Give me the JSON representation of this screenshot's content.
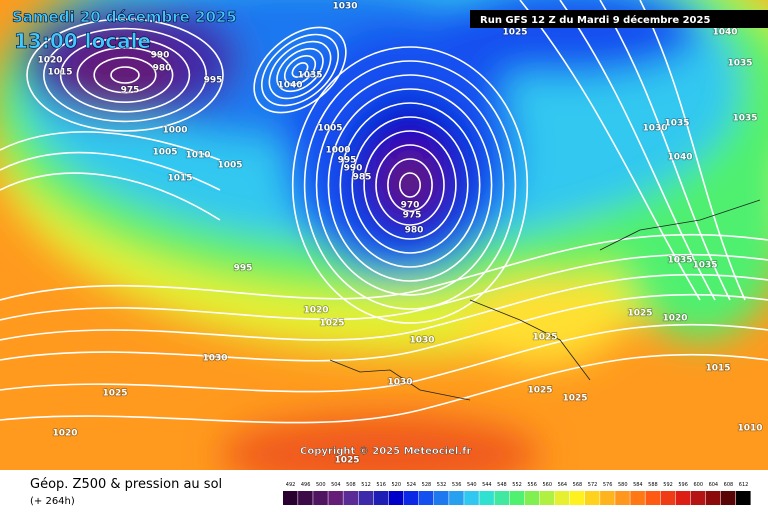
{
  "header": {
    "date": "Samedi 20 décembre 2025",
    "time": "13:00 locale",
    "run": "Run GFS 12 Z du Mardi 9 décembre 2025"
  },
  "copyright": "Copyright © 2025 Meteociel.fr",
  "footer": {
    "title": "Géop. Z500 & pression au sol",
    "lead": "(+ 264h)"
  },
  "isobar_labels": [
    "1020",
    "1015",
    "990",
    "980",
    "975",
    "995",
    "1035",
    "1040",
    "1000",
    "1005",
    "1010",
    "1015",
    "1005",
    "1005",
    "1000",
    "995",
    "990",
    "985",
    "970",
    "975",
    "980",
    "995",
    "1020",
    "1025",
    "1030",
    "1030",
    "1025",
    "1030",
    "1025",
    "1020",
    "1025",
    "1025",
    "1020",
    "1035",
    "1035",
    "1015",
    "1010",
    "1030",
    "1035",
    "1040",
    "1035",
    "1035",
    "1040",
    "1025",
    "1030",
    "1025",
    "1025"
  ],
  "legend": {
    "values": [
      492,
      496,
      500,
      504,
      508,
      512,
      516,
      520,
      524,
      528,
      532,
      536,
      540,
      544,
      548,
      552,
      556,
      560,
      564,
      568,
      572,
      576,
      580,
      584,
      588,
      592,
      596,
      600,
      604,
      608,
      612
    ],
    "colors": [
      "#2a0030",
      "#3c0a46",
      "#501560",
      "#641e78",
      "#5a2a96",
      "#3c2aaa",
      "#1e1eb4",
      "#0000c8",
      "#0a28e6",
      "#1450f0",
      "#1e78f0",
      "#28a0f0",
      "#30c8f0",
      "#30e0d0",
      "#40e8a0",
      "#50f070",
      "#80f050",
      "#b0f040",
      "#e6f030",
      "#fff020",
      "#ffd21e",
      "#ffb41e",
      "#ff961e",
      "#ff7814",
      "#ff5a14",
      "#f03c14",
      "#dc1e14",
      "#b41414",
      "#8c0a0a",
      "#5a0505",
      "#000000"
    ]
  }
}
